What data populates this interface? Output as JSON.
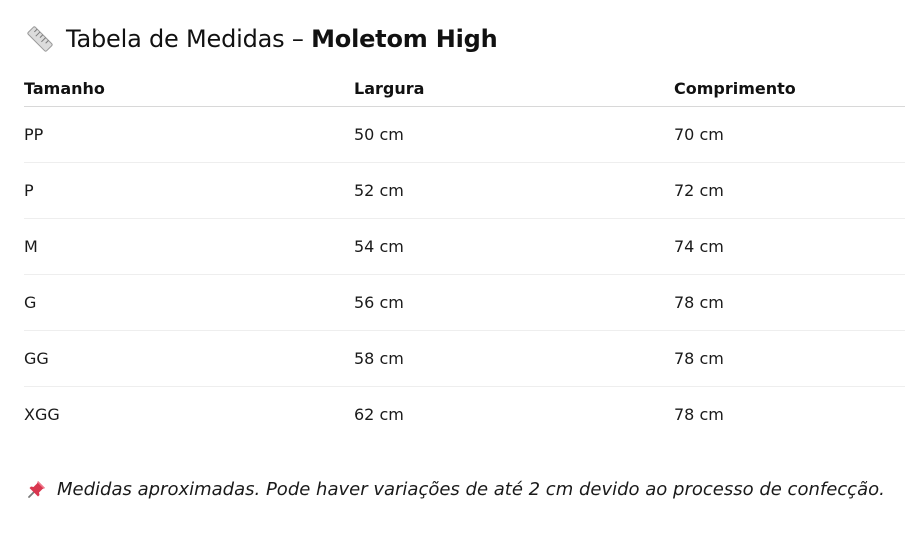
{
  "header": {
    "icon": "ruler-icon",
    "title_prefix": "Tabela de Medidas – ",
    "product_name": "Moletom High"
  },
  "table": {
    "columns": [
      "Tamanho",
      "Largura",
      "Comprimento"
    ],
    "rows": [
      [
        "PP",
        "50 cm",
        "70 cm"
      ],
      [
        "P",
        "52 cm",
        "72 cm"
      ],
      [
        "M",
        "54 cm",
        "74 cm"
      ],
      [
        "G",
        "56 cm",
        "78 cm"
      ],
      [
        "GG",
        "58 cm",
        "78 cm"
      ],
      [
        "XGG",
        "62 cm",
        "78 cm"
      ]
    ]
  },
  "footer": {
    "icon": "pushpin-icon",
    "note": "Medidas aproximadas. Pode haver variações de até 2 cm devido ao processo de confecção."
  },
  "colors": {
    "text": "#1a1a1a",
    "header_divider": "#d8d8d8",
    "row_divider": "#eeeeee",
    "pin": "#d9364f"
  }
}
